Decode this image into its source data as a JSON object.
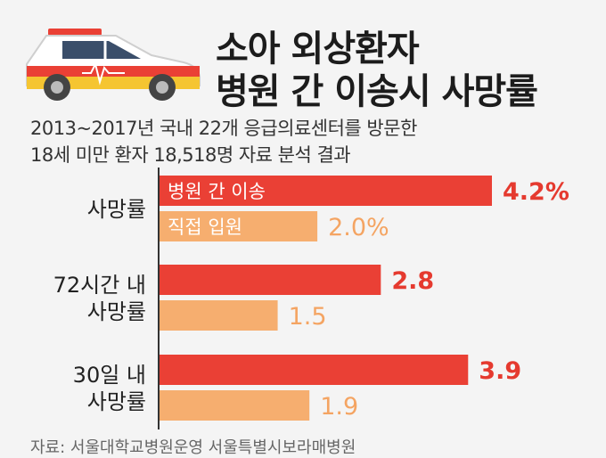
{
  "header": {
    "title_line1": "소아 외상환자",
    "title_line2": "병원 간 이송시 사망률",
    "subtitle_line1": "2013~2017년 국내 22개 응급의료센터를 방문한",
    "subtitle_line2": "18세 미만 환자 18,518명 자료 분석 결과"
  },
  "source": "자료: 서울대학교병원운영 서울특별시보라매병원",
  "colors": {
    "transfer": "#ea4035",
    "direct": "#f6ae6f",
    "transfer_label": "#e53a2f",
    "direct_label": "#f4a462",
    "axis": "#333333"
  },
  "chart_data": {
    "type": "bar",
    "orientation": "horizontal",
    "categories": [
      [
        "사망률"
      ],
      [
        "72시간 내",
        "사망률"
      ],
      [
        "30일 내",
        "사망률"
      ]
    ],
    "series": [
      {
        "name": "병원 간 이송",
        "values": [
          4.2,
          2.8,
          3.9
        ],
        "labels": [
          "4.2%",
          "2.8",
          "3.9"
        ],
        "color": "#ea4035"
      },
      {
        "name": "직접 입원",
        "values": [
          2.0,
          1.5,
          1.9
        ],
        "labels": [
          "2.0%",
          "1.5",
          "1.9"
        ],
        "color": "#f6ae6f"
      }
    ],
    "xlim": [
      0,
      4.2
    ],
    "grid": false,
    "legend": "inside-bars"
  }
}
